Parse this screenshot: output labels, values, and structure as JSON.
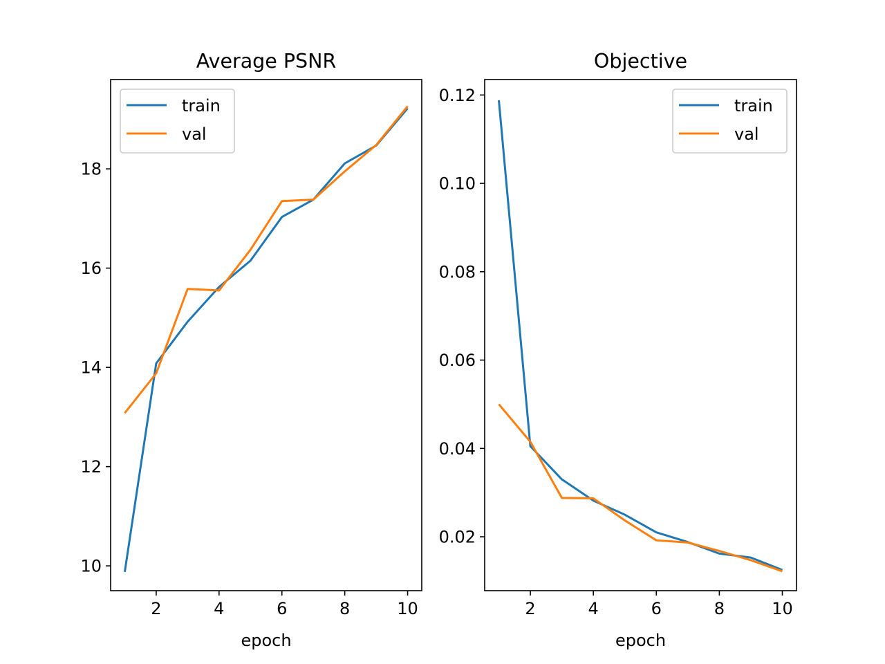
{
  "chart_data": [
    {
      "type": "line",
      "title": "Average PSNR",
      "xlabel": "epoch",
      "ylabel": "",
      "x": [
        1,
        2,
        3,
        4,
        5,
        6,
        7,
        8,
        9,
        10
      ],
      "xlim": [
        0.55,
        10.45
      ],
      "ylim": [
        9.5,
        19.8
      ],
      "xticks": [
        2,
        4,
        6,
        8,
        10
      ],
      "yticks": [
        10,
        12,
        14,
        16,
        18
      ],
      "legend": "upper left",
      "grid": false,
      "series": [
        {
          "name": "train",
          "color": "#1f77b4",
          "values": [
            9.88,
            14.08,
            14.92,
            15.62,
            16.15,
            17.03,
            17.38,
            18.11,
            18.47,
            19.22
          ]
        },
        {
          "name": "val",
          "color": "#ff7f0e",
          "values": [
            13.08,
            13.88,
            15.58,
            15.55,
            16.37,
            17.35,
            17.38,
            17.95,
            18.48,
            19.26
          ]
        }
      ]
    },
    {
      "type": "line",
      "title": "Objective",
      "xlabel": "epoch",
      "ylabel": "",
      "x": [
        1,
        2,
        3,
        4,
        5,
        6,
        7,
        8,
        9,
        10
      ],
      "xlim": [
        0.55,
        10.45
      ],
      "ylim": [
        0.0078,
        0.1235
      ],
      "xticks": [
        2,
        4,
        6,
        8,
        10
      ],
      "yticks": [
        0.02,
        0.04,
        0.06,
        0.08,
        0.1,
        0.12
      ],
      "ytick_labels": [
        "0.02",
        "0.04",
        "0.06",
        "0.08",
        "0.10",
        "0.12"
      ],
      "legend": "upper right",
      "grid": false,
      "series": [
        {
          "name": "train",
          "color": "#1f77b4",
          "values": [
            0.1188,
            0.0405,
            0.033,
            0.0282,
            0.025,
            0.021,
            0.0188,
            0.0162,
            0.0153,
            0.0125
          ]
        },
        {
          "name": "val",
          "color": "#ff7f0e",
          "values": [
            0.05,
            0.0415,
            0.0288,
            0.0287,
            0.0237,
            0.0192,
            0.0187,
            0.0168,
            0.0147,
            0.0122
          ]
        }
      ]
    }
  ]
}
